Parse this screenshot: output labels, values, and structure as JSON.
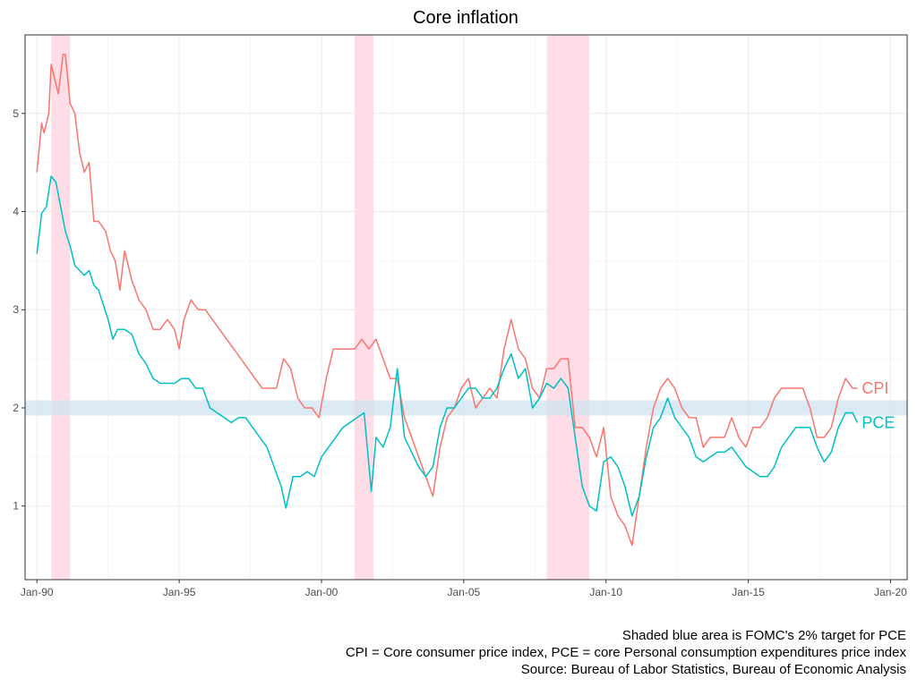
{
  "chart_data": {
    "type": "line",
    "title": "Core inflation",
    "xlabel": "",
    "ylabel": "",
    "x_ticks": [
      "Jan-90",
      "Jan-95",
      "Jan-00",
      "Jan-05",
      "Jan-10",
      "Jan-15",
      "Jan-20"
    ],
    "y_ticks": [
      1,
      2,
      3,
      4,
      5
    ],
    "xlim": [
      "1989-08",
      "2020-08"
    ],
    "ylim": [
      0.25,
      5.8
    ],
    "grid": true,
    "legend": "labels at line ends (right)",
    "recessions": [
      {
        "start": "1990-07",
        "end": "1991-03"
      },
      {
        "start": "2001-03",
        "end": "2001-11"
      },
      {
        "start": "2007-12",
        "end": "2009-06"
      }
    ],
    "target_band": {
      "low": 1.95,
      "high": 2.05,
      "color": "#cfe3f0"
    },
    "recession_color": "#ffdde6",
    "series": [
      {
        "name": "CPI",
        "color": "#f8766d",
        "points": [
          [
            "1990-01",
            4.4
          ],
          [
            "1990-03",
            4.9
          ],
          [
            "1990-04",
            4.8
          ],
          [
            "1990-06",
            5.0
          ],
          [
            "1990-07",
            5.5
          ],
          [
            "1990-09",
            5.3
          ],
          [
            "1990-10",
            5.2
          ],
          [
            "1990-12",
            5.6
          ],
          [
            "1991-01",
            5.6
          ],
          [
            "1991-03",
            5.1
          ],
          [
            "1991-05",
            5.0
          ],
          [
            "1991-07",
            4.6
          ],
          [
            "1991-09",
            4.4
          ],
          [
            "1991-11",
            4.5
          ],
          [
            "1992-01",
            3.9
          ],
          [
            "1992-03",
            3.9
          ],
          [
            "1992-06",
            3.8
          ],
          [
            "1992-08",
            3.6
          ],
          [
            "1992-10",
            3.5
          ],
          [
            "1992-12",
            3.2
          ],
          [
            "1993-02",
            3.6
          ],
          [
            "1993-05",
            3.3
          ],
          [
            "1993-08",
            3.1
          ],
          [
            "1993-11",
            3.0
          ],
          [
            "1994-02",
            2.8
          ],
          [
            "1994-05",
            2.8
          ],
          [
            "1994-08",
            2.9
          ],
          [
            "1994-11",
            2.8
          ],
          [
            "1995-01",
            2.6
          ],
          [
            "1995-03",
            2.9
          ],
          [
            "1995-06",
            3.1
          ],
          [
            "1995-09",
            3.0
          ],
          [
            "1995-12",
            3.0
          ],
          [
            "1996-03",
            2.9
          ],
          [
            "1996-06",
            2.8
          ],
          [
            "1996-09",
            2.7
          ],
          [
            "1996-12",
            2.6
          ],
          [
            "1997-03",
            2.5
          ],
          [
            "1997-06",
            2.4
          ],
          [
            "1997-09",
            2.3
          ],
          [
            "1997-12",
            2.2
          ],
          [
            "1998-03",
            2.2
          ],
          [
            "1998-06",
            2.2
          ],
          [
            "1998-09",
            2.5
          ],
          [
            "1998-12",
            2.4
          ],
          [
            "1999-03",
            2.1
          ],
          [
            "1999-06",
            2.0
          ],
          [
            "1999-09",
            2.0
          ],
          [
            "1999-12",
            1.9
          ],
          [
            "2000-03",
            2.3
          ],
          [
            "2000-06",
            2.6
          ],
          [
            "2000-09",
            2.6
          ],
          [
            "2000-12",
            2.6
          ],
          [
            "2001-03",
            2.6
          ],
          [
            "2001-06",
            2.7
          ],
          [
            "2001-09",
            2.6
          ],
          [
            "2001-12",
            2.7
          ],
          [
            "2002-03",
            2.5
          ],
          [
            "2002-06",
            2.3
          ],
          [
            "2002-09",
            2.3
          ],
          [
            "2002-12",
            1.9
          ],
          [
            "2003-03",
            1.7
          ],
          [
            "2003-06",
            1.5
          ],
          [
            "2003-09",
            1.3
          ],
          [
            "2003-12",
            1.1
          ],
          [
            "2004-03",
            1.6
          ],
          [
            "2004-06",
            1.9
          ],
          [
            "2004-09",
            2.0
          ],
          [
            "2004-12",
            2.2
          ],
          [
            "2005-03",
            2.3
          ],
          [
            "2005-06",
            2.0
          ],
          [
            "2005-09",
            2.1
          ],
          [
            "2005-12",
            2.2
          ],
          [
            "2006-03",
            2.1
          ],
          [
            "2006-06",
            2.6
          ],
          [
            "2006-09",
            2.9
          ],
          [
            "2006-12",
            2.6
          ],
          [
            "2007-03",
            2.5
          ],
          [
            "2007-06",
            2.2
          ],
          [
            "2007-09",
            2.1
          ],
          [
            "2007-12",
            2.4
          ],
          [
            "2008-03",
            2.4
          ],
          [
            "2008-06",
            2.5
          ],
          [
            "2008-09",
            2.5
          ],
          [
            "2008-12",
            1.8
          ],
          [
            "2009-03",
            1.8
          ],
          [
            "2009-06",
            1.7
          ],
          [
            "2009-09",
            1.5
          ],
          [
            "2009-12",
            1.8
          ],
          [
            "2010-03",
            1.1
          ],
          [
            "2010-06",
            0.9
          ],
          [
            "2010-09",
            0.8
          ],
          [
            "2010-12",
            0.6
          ],
          [
            "2011-03",
            1.1
          ],
          [
            "2011-06",
            1.6
          ],
          [
            "2011-09",
            2.0
          ],
          [
            "2011-12",
            2.2
          ],
          [
            "2012-03",
            2.3
          ],
          [
            "2012-06",
            2.2
          ],
          [
            "2012-09",
            2.0
          ],
          [
            "2012-12",
            1.9
          ],
          [
            "2013-03",
            1.9
          ],
          [
            "2013-06",
            1.6
          ],
          [
            "2013-09",
            1.7
          ],
          [
            "2013-12",
            1.7
          ],
          [
            "2014-03",
            1.7
          ],
          [
            "2014-06",
            1.9
          ],
          [
            "2014-09",
            1.7
          ],
          [
            "2014-12",
            1.6
          ],
          [
            "2015-03",
            1.8
          ],
          [
            "2015-06",
            1.8
          ],
          [
            "2015-09",
            1.9
          ],
          [
            "2015-12",
            2.1
          ],
          [
            "2016-03",
            2.2
          ],
          [
            "2016-06",
            2.2
          ],
          [
            "2016-09",
            2.2
          ],
          [
            "2016-12",
            2.2
          ],
          [
            "2017-03",
            2.0
          ],
          [
            "2017-06",
            1.7
          ],
          [
            "2017-09",
            1.7
          ],
          [
            "2017-12",
            1.8
          ],
          [
            "2018-03",
            2.1
          ],
          [
            "2018-06",
            2.3
          ],
          [
            "2018-09",
            2.2
          ],
          [
            "2018-11",
            2.2
          ]
        ]
      },
      {
        "name": "PCE",
        "color": "#00bfc4",
        "points": [
          [
            "1990-01",
            3.57
          ],
          [
            "1990-03",
            3.98
          ],
          [
            "1990-05",
            4.05
          ],
          [
            "1990-07",
            4.36
          ],
          [
            "1990-09",
            4.3
          ],
          [
            "1990-11",
            4.05
          ],
          [
            "1991-01",
            3.8
          ],
          [
            "1991-03",
            3.65
          ],
          [
            "1991-05",
            3.45
          ],
          [
            "1991-07",
            3.4
          ],
          [
            "1991-09",
            3.35
          ],
          [
            "1991-11",
            3.4
          ],
          [
            "1992-01",
            3.25
          ],
          [
            "1992-03",
            3.2
          ],
          [
            "1992-05",
            3.05
          ],
          [
            "1992-07",
            2.9
          ],
          [
            "1992-09",
            2.7
          ],
          [
            "1992-11",
            2.8
          ],
          [
            "1993-02",
            2.8
          ],
          [
            "1993-05",
            2.75
          ],
          [
            "1993-08",
            2.55
          ],
          [
            "1993-11",
            2.45
          ],
          [
            "1994-02",
            2.3
          ],
          [
            "1994-05",
            2.25
          ],
          [
            "1994-08",
            2.25
          ],
          [
            "1994-11",
            2.25
          ],
          [
            "1995-02",
            2.3
          ],
          [
            "1995-05",
            2.3
          ],
          [
            "1995-08",
            2.2
          ],
          [
            "1995-11",
            2.2
          ],
          [
            "1996-02",
            2.0
          ],
          [
            "1996-05",
            1.95
          ],
          [
            "1996-08",
            1.9
          ],
          [
            "1996-11",
            1.85
          ],
          [
            "1997-02",
            1.9
          ],
          [
            "1997-05",
            1.9
          ],
          [
            "1997-08",
            1.8
          ],
          [
            "1997-11",
            1.7
          ],
          [
            "1998-02",
            1.6
          ],
          [
            "1998-05",
            1.4
          ],
          [
            "1998-08",
            1.2
          ],
          [
            "1998-10",
            0.98
          ],
          [
            "1999-01",
            1.3
          ],
          [
            "1999-04",
            1.3
          ],
          [
            "1999-07",
            1.35
          ],
          [
            "1999-10",
            1.3
          ],
          [
            "2000-01",
            1.5
          ],
          [
            "2000-04",
            1.6
          ],
          [
            "2000-07",
            1.7
          ],
          [
            "2000-10",
            1.8
          ],
          [
            "2001-01",
            1.85
          ],
          [
            "2001-04",
            1.9
          ],
          [
            "2001-07",
            1.95
          ],
          [
            "2001-10",
            1.15
          ],
          [
            "2001-12",
            1.7
          ],
          [
            "2002-03",
            1.6
          ],
          [
            "2002-06",
            1.8
          ],
          [
            "2002-09",
            2.4
          ],
          [
            "2002-12",
            1.7
          ],
          [
            "2003-03",
            1.55
          ],
          [
            "2003-06",
            1.4
          ],
          [
            "2003-09",
            1.3
          ],
          [
            "2003-12",
            1.4
          ],
          [
            "2004-03",
            1.8
          ],
          [
            "2004-06",
            2.0
          ],
          [
            "2004-09",
            2.0
          ],
          [
            "2004-12",
            2.1
          ],
          [
            "2005-03",
            2.2
          ],
          [
            "2005-06",
            2.2
          ],
          [
            "2005-09",
            2.1
          ],
          [
            "2005-12",
            2.1
          ],
          [
            "2006-03",
            2.2
          ],
          [
            "2006-06",
            2.4
          ],
          [
            "2006-09",
            2.55
          ],
          [
            "2006-12",
            2.3
          ],
          [
            "2007-03",
            2.4
          ],
          [
            "2007-06",
            2.0
          ],
          [
            "2007-09",
            2.1
          ],
          [
            "2007-12",
            2.25
          ],
          [
            "2008-03",
            2.2
          ],
          [
            "2008-06",
            2.3
          ],
          [
            "2008-09",
            2.2
          ],
          [
            "2008-12",
            1.7
          ],
          [
            "2009-03",
            1.2
          ],
          [
            "2009-06",
            1.0
          ],
          [
            "2009-09",
            0.95
          ],
          [
            "2009-12",
            1.45
          ],
          [
            "2010-03",
            1.5
          ],
          [
            "2010-06",
            1.4
          ],
          [
            "2010-09",
            1.2
          ],
          [
            "2010-12",
            0.9
          ],
          [
            "2011-03",
            1.1
          ],
          [
            "2011-06",
            1.5
          ],
          [
            "2011-09",
            1.8
          ],
          [
            "2011-12",
            1.9
          ],
          [
            "2012-03",
            2.1
          ],
          [
            "2012-06",
            1.9
          ],
          [
            "2012-09",
            1.8
          ],
          [
            "2012-12",
            1.7
          ],
          [
            "2013-03",
            1.5
          ],
          [
            "2013-06",
            1.45
          ],
          [
            "2013-09",
            1.5
          ],
          [
            "2013-12",
            1.55
          ],
          [
            "2014-03",
            1.55
          ],
          [
            "2014-06",
            1.6
          ],
          [
            "2014-09",
            1.5
          ],
          [
            "2014-12",
            1.4
          ],
          [
            "2015-03",
            1.35
          ],
          [
            "2015-06",
            1.3
          ],
          [
            "2015-09",
            1.3
          ],
          [
            "2015-12",
            1.4
          ],
          [
            "2016-03",
            1.6
          ],
          [
            "2016-06",
            1.7
          ],
          [
            "2016-09",
            1.8
          ],
          [
            "2016-12",
            1.8
          ],
          [
            "2017-03",
            1.8
          ],
          [
            "2017-06",
            1.6
          ],
          [
            "2017-09",
            1.45
          ],
          [
            "2017-12",
            1.55
          ],
          [
            "2018-03",
            1.8
          ],
          [
            "2018-06",
            1.95
          ],
          [
            "2018-09",
            1.95
          ],
          [
            "2018-11",
            1.85
          ]
        ]
      }
    ]
  },
  "captions": [
    "Shaded blue area is FOMC's 2% target for PCE",
    "CPI = Core consumer price index, PCE = core Personal consumption expenditures price index",
    "Source: Bureau of Labor Statistics, Bureau of Economic Analysis"
  ]
}
